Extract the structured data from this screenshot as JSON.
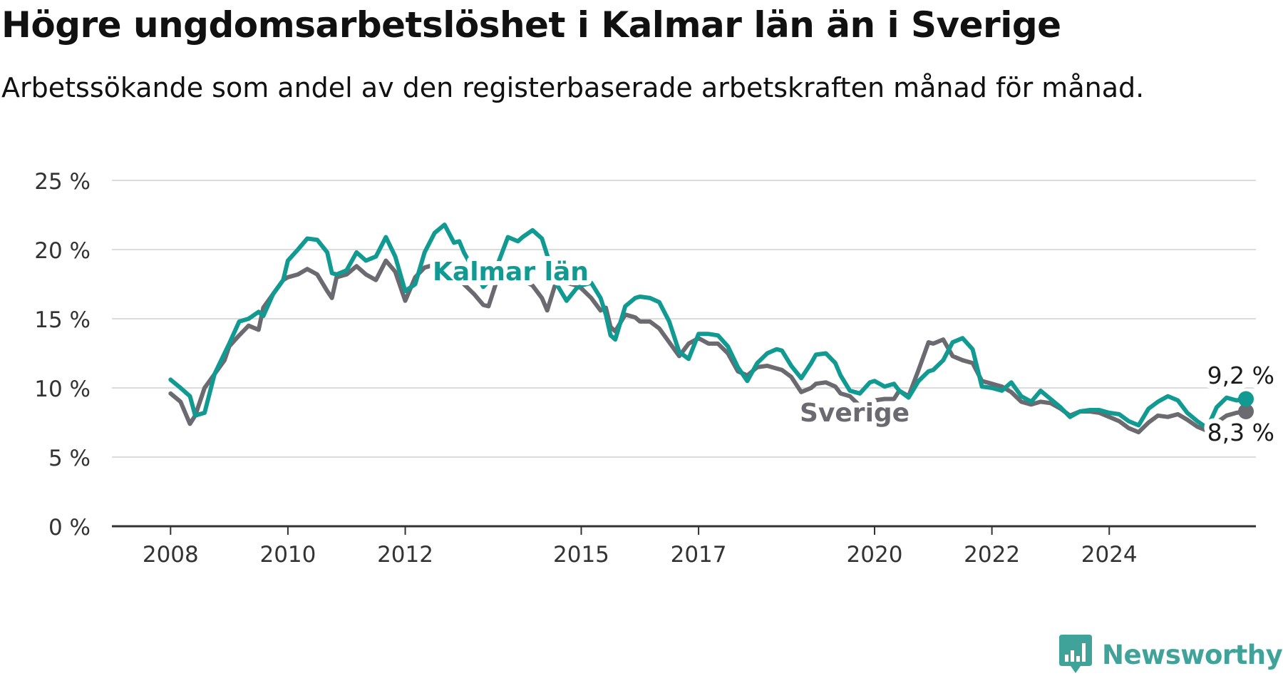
{
  "title": "Högre ungdomsarbetslöshet i Kalmar län än i Sverige",
  "subtitle": "Arbetssökande som andel av den registerbaserade arbetskraften månad för månad.",
  "brand": {
    "name": "Newsworthy",
    "color": "#3fa39a",
    "icon": "newsworthy-bar-chart-icon"
  },
  "chart_data": {
    "type": "line",
    "xlim": [
      2007.3,
      2025.8
    ],
    "ylim": [
      0,
      25
    ],
    "yticks": [
      0,
      5,
      10,
      15,
      20,
      25
    ],
    "yticklabels": [
      "0 %",
      "5 %",
      "10 %",
      "15 %",
      "20 %",
      "25 %"
    ],
    "xticks": [
      2008,
      2010,
      2012,
      2015,
      2017,
      2020,
      2022,
      2024
    ],
    "xticklabels": [
      "2008",
      "2010",
      "2012",
      "2015",
      "2017",
      "2020",
      "2022",
      "2024"
    ],
    "grid": true,
    "legend": "none (series labelled directly on lines)",
    "series": [
      {
        "name": "Sverige",
        "color": "#6b6a70",
        "end_label": "8,3 %",
        "points": [
          [
            2008.0,
            9.6
          ],
          [
            2008.17,
            9.0
          ],
          [
            2008.33,
            7.4
          ],
          [
            2008.42,
            8.0
          ],
          [
            2008.58,
            10.0
          ],
          [
            2008.75,
            11.0
          ],
          [
            2008.92,
            12.0
          ],
          [
            2009.0,
            13.0
          ],
          [
            2009.17,
            13.8
          ],
          [
            2009.33,
            14.5
          ],
          [
            2009.5,
            14.2
          ],
          [
            2009.58,
            15.8
          ],
          [
            2009.75,
            16.8
          ],
          [
            2009.92,
            17.8
          ],
          [
            2010.0,
            18.0
          ],
          [
            2010.17,
            18.2
          ],
          [
            2010.33,
            18.6
          ],
          [
            2010.5,
            18.2
          ],
          [
            2010.67,
            17.0
          ],
          [
            2010.75,
            16.5
          ],
          [
            2010.83,
            18.0
          ],
          [
            2011.0,
            18.2
          ],
          [
            2011.17,
            18.8
          ],
          [
            2011.33,
            18.2
          ],
          [
            2011.5,
            17.8
          ],
          [
            2011.67,
            19.2
          ],
          [
            2011.83,
            18.4
          ],
          [
            2012.0,
            16.3
          ],
          [
            2012.17,
            18.0
          ],
          [
            2012.33,
            18.7
          ],
          [
            2012.5,
            18.9
          ],
          [
            2012.67,
            19.0
          ],
          [
            2012.83,
            19.2
          ],
          [
            2012.92,
            17.8
          ],
          [
            2013.0,
            17.5
          ],
          [
            2013.17,
            16.8
          ],
          [
            2013.33,
            16.0
          ],
          [
            2013.42,
            15.9
          ],
          [
            2013.58,
            18.0
          ],
          [
            2013.75,
            18.3
          ],
          [
            2013.92,
            18.2
          ],
          [
            2014.0,
            17.8
          ],
          [
            2014.17,
            17.4
          ],
          [
            2014.33,
            16.5
          ],
          [
            2014.42,
            15.6
          ],
          [
            2014.58,
            17.8
          ],
          [
            2014.75,
            17.6
          ],
          [
            2014.92,
            17.4
          ],
          [
            2015.0,
            17.2
          ],
          [
            2015.17,
            16.5
          ],
          [
            2015.33,
            15.6
          ],
          [
            2015.42,
            15.8
          ],
          [
            2015.5,
            14.4
          ],
          [
            2015.58,
            14.1
          ],
          [
            2015.75,
            15.3
          ],
          [
            2015.92,
            15.1
          ],
          [
            2016.0,
            14.8
          ],
          [
            2016.17,
            14.8
          ],
          [
            2016.33,
            14.3
          ],
          [
            2016.5,
            13.3
          ],
          [
            2016.67,
            12.3
          ],
          [
            2016.83,
            13.2
          ],
          [
            2017.0,
            13.6
          ],
          [
            2017.17,
            13.2
          ],
          [
            2017.33,
            13.2
          ],
          [
            2017.5,
            12.5
          ],
          [
            2017.67,
            11.2
          ],
          [
            2017.83,
            10.9
          ],
          [
            2018.0,
            11.5
          ],
          [
            2018.17,
            11.6
          ],
          [
            2018.33,
            11.4
          ],
          [
            2018.42,
            11.3
          ],
          [
            2018.58,
            10.8
          ],
          [
            2018.75,
            9.7
          ],
          [
            2018.92,
            10.0
          ],
          [
            2019.0,
            10.3
          ],
          [
            2019.17,
            10.4
          ],
          [
            2019.33,
            10.1
          ],
          [
            2019.42,
            9.6
          ],
          [
            2019.58,
            9.4
          ],
          [
            2019.75,
            8.7
          ],
          [
            2019.92,
            8.9
          ],
          [
            2020.0,
            9.1
          ],
          [
            2020.17,
            9.2
          ],
          [
            2020.33,
            9.2
          ],
          [
            2020.42,
            9.8
          ],
          [
            2020.58,
            9.4
          ],
          [
            2020.75,
            11.3
          ],
          [
            2020.92,
            13.3
          ],
          [
            2021.0,
            13.2
          ],
          [
            2021.17,
            13.5
          ],
          [
            2021.33,
            12.3
          ],
          [
            2021.5,
            12.0
          ],
          [
            2021.67,
            11.8
          ],
          [
            2021.83,
            10.5
          ],
          [
            2022.0,
            10.3
          ],
          [
            2022.17,
            10.1
          ],
          [
            2022.33,
            9.7
          ],
          [
            2022.5,
            9.0
          ],
          [
            2022.67,
            8.8
          ],
          [
            2022.83,
            9.0
          ],
          [
            2023.0,
            8.9
          ],
          [
            2023.17,
            8.5
          ],
          [
            2023.33,
            8.0
          ],
          [
            2023.5,
            8.3
          ],
          [
            2023.67,
            8.3
          ],
          [
            2023.83,
            8.2
          ],
          [
            2024.0,
            7.9
          ],
          [
            2024.17,
            7.6
          ],
          [
            2024.33,
            7.1
          ],
          [
            2024.5,
            6.8
          ],
          [
            2024.67,
            7.5
          ],
          [
            2024.83,
            8.0
          ],
          [
            2025.0,
            7.9
          ],
          [
            2025.17,
            8.1
          ],
          [
            2025.33,
            7.7
          ],
          [
            2025.5,
            7.2
          ],
          [
            2025.67,
            6.9
          ],
          [
            2025.83,
            7.5
          ],
          [
            2026.0,
            8.0
          ],
          [
            2026.17,
            8.2
          ],
          [
            2026.33,
            8.3
          ]
        ]
      },
      {
        "name": "Kalmar län",
        "color": "#109a92",
        "end_label": "9,2 %",
        "points": [
          [
            2008.0,
            10.6
          ],
          [
            2008.17,
            10.0
          ],
          [
            2008.33,
            9.4
          ],
          [
            2008.42,
            8.0
          ],
          [
            2008.58,
            8.2
          ],
          [
            2008.75,
            11.0
          ],
          [
            2008.92,
            12.5
          ],
          [
            2009.0,
            13.2
          ],
          [
            2009.17,
            14.8
          ],
          [
            2009.33,
            15.0
          ],
          [
            2009.5,
            15.5
          ],
          [
            2009.58,
            15.2
          ],
          [
            2009.75,
            16.8
          ],
          [
            2009.92,
            17.8
          ],
          [
            2010.0,
            19.2
          ],
          [
            2010.17,
            20.0
          ],
          [
            2010.33,
            20.8
          ],
          [
            2010.5,
            20.7
          ],
          [
            2010.67,
            19.8
          ],
          [
            2010.75,
            18.3
          ],
          [
            2010.83,
            18.2
          ],
          [
            2011.0,
            18.5
          ],
          [
            2011.17,
            19.8
          ],
          [
            2011.33,
            19.2
          ],
          [
            2011.5,
            19.5
          ],
          [
            2011.67,
            20.9
          ],
          [
            2011.83,
            19.5
          ],
          [
            2012.0,
            17.0
          ],
          [
            2012.17,
            17.5
          ],
          [
            2012.33,
            19.8
          ],
          [
            2012.5,
            21.2
          ],
          [
            2012.67,
            21.8
          ],
          [
            2012.83,
            20.5
          ],
          [
            2012.92,
            20.6
          ],
          [
            2013.0,
            19.8
          ],
          [
            2013.17,
            18.5
          ],
          [
            2013.33,
            17.3
          ],
          [
            2013.42,
            17.7
          ],
          [
            2013.58,
            19.0
          ],
          [
            2013.75,
            20.9
          ],
          [
            2013.92,
            20.6
          ],
          [
            2014.0,
            20.9
          ],
          [
            2014.17,
            21.4
          ],
          [
            2014.33,
            20.8
          ],
          [
            2014.42,
            19.6
          ],
          [
            2014.58,
            17.5
          ],
          [
            2014.75,
            16.3
          ],
          [
            2014.92,
            17.2
          ],
          [
            2015.0,
            17.4
          ],
          [
            2015.17,
            17.6
          ],
          [
            2015.33,
            16.5
          ],
          [
            2015.42,
            15.3
          ],
          [
            2015.5,
            13.8
          ],
          [
            2015.58,
            13.5
          ],
          [
            2015.75,
            15.9
          ],
          [
            2015.92,
            16.5
          ],
          [
            2016.0,
            16.6
          ],
          [
            2016.17,
            16.5
          ],
          [
            2016.33,
            16.2
          ],
          [
            2016.5,
            14.8
          ],
          [
            2016.67,
            12.6
          ],
          [
            2016.83,
            12.1
          ],
          [
            2017.0,
            13.9
          ],
          [
            2017.17,
            13.9
          ],
          [
            2017.33,
            13.8
          ],
          [
            2017.5,
            13.0
          ],
          [
            2017.67,
            11.5
          ],
          [
            2017.83,
            10.5
          ],
          [
            2018.0,
            11.8
          ],
          [
            2018.17,
            12.5
          ],
          [
            2018.33,
            12.8
          ],
          [
            2018.42,
            12.7
          ],
          [
            2018.58,
            11.6
          ],
          [
            2018.75,
            10.7
          ],
          [
            2018.92,
            11.8
          ],
          [
            2019.0,
            12.4
          ],
          [
            2019.17,
            12.5
          ],
          [
            2019.33,
            11.8
          ],
          [
            2019.42,
            10.9
          ],
          [
            2019.58,
            9.8
          ],
          [
            2019.75,
            9.6
          ],
          [
            2019.92,
            10.4
          ],
          [
            2020.0,
            10.5
          ],
          [
            2020.17,
            10.1
          ],
          [
            2020.33,
            10.3
          ],
          [
            2020.42,
            9.8
          ],
          [
            2020.58,
            9.3
          ],
          [
            2020.75,
            10.5
          ],
          [
            2020.92,
            11.2
          ],
          [
            2021.0,
            11.3
          ],
          [
            2021.17,
            12.0
          ],
          [
            2021.33,
            13.3
          ],
          [
            2021.5,
            13.6
          ],
          [
            2021.67,
            12.8
          ],
          [
            2021.83,
            10.1
          ],
          [
            2022.0,
            10.0
          ],
          [
            2022.17,
            9.8
          ],
          [
            2022.33,
            10.4
          ],
          [
            2022.5,
            9.4
          ],
          [
            2022.67,
            9.0
          ],
          [
            2022.83,
            9.8
          ],
          [
            2023.0,
            9.2
          ],
          [
            2023.17,
            8.6
          ],
          [
            2023.33,
            7.9
          ],
          [
            2023.5,
            8.3
          ],
          [
            2023.67,
            8.4
          ],
          [
            2023.83,
            8.4
          ],
          [
            2024.0,
            8.2
          ],
          [
            2024.17,
            8.1
          ],
          [
            2024.33,
            7.6
          ],
          [
            2024.5,
            7.3
          ],
          [
            2024.67,
            8.5
          ],
          [
            2024.83,
            9.0
          ],
          [
            2025.0,
            9.4
          ],
          [
            2025.17,
            9.1
          ],
          [
            2025.33,
            8.2
          ],
          [
            2025.5,
            7.6
          ],
          [
            2025.67,
            7.1
          ],
          [
            2025.83,
            8.6
          ],
          [
            2026.0,
            9.3
          ],
          [
            2026.17,
            9.1
          ],
          [
            2026.33,
            9.2
          ]
        ]
      }
    ],
    "annotations": [
      {
        "text": "Kalmar län",
        "series": "Kalmar län"
      },
      {
        "text": "Sverige",
        "series": "Sverige"
      }
    ]
  }
}
